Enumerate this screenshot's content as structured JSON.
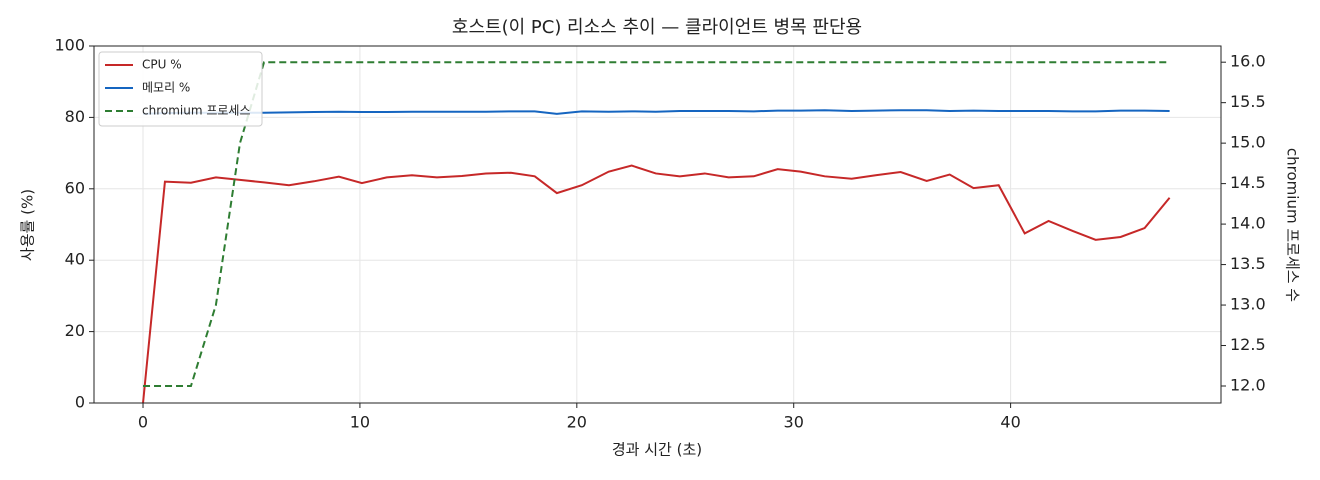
{
  "chart_data": {
    "type": "line",
    "title": "호스트(이 PC) 리소스 추이 — 클라이언트 병목 판단용",
    "x_label": "경과 시간 (초)",
    "y_label": "사용률 (%)",
    "y2_label": "chromium 프로세스 수",
    "x": [
      0,
      1.01,
      2.21,
      3.36,
      4.47,
      5.58,
      6.73,
      7.88,
      9.03,
      10.09,
      11.24,
      12.4,
      13.55,
      14.7,
      15.81,
      16.96,
      18.06,
      19.08,
      20.23,
      21.47,
      22.53,
      23.64,
      24.75,
      25.9,
      27.0,
      28.16,
      29.26,
      30.32,
      31.43,
      32.67,
      33.78,
      34.93,
      36.13,
      37.19,
      38.29,
      39.45,
      40.65,
      41.75,
      42.86,
      43.92,
      45.07,
      46.18,
      47.33
    ],
    "series": [
      {
        "name": "CPU %",
        "color": "#c62828",
        "linestyle": "solid",
        "axis": "y",
        "values": [
          0,
          62,
          61.7,
          63.2,
          62.5,
          61.8,
          61,
          62.1,
          63.4,
          61.6,
          63.2,
          63.8,
          63.2,
          63.6,
          64.3,
          64.5,
          63.5,
          58.8,
          61,
          64.8,
          66.5,
          64.3,
          63.5,
          64.3,
          63.2,
          63.5,
          65.5,
          64.8,
          63.5,
          62.8,
          63.8,
          64.7,
          62.2,
          64,
          60.2,
          61,
          47.5,
          51,
          48.2,
          45.7,
          46.5,
          49,
          57.5
        ]
      },
      {
        "name": "메모리 %",
        "color": "#1565c0",
        "linestyle": "solid",
        "axis": "y",
        "values": [
          81.0,
          81.2,
          81.3,
          81.3,
          81.3,
          81.3,
          81.4,
          81.5,
          81.6,
          81.5,
          81.5,
          81.6,
          81.6,
          81.6,
          81.6,
          81.7,
          81.7,
          81.0,
          81.7,
          81.6,
          81.7,
          81.6,
          81.8,
          81.8,
          81.8,
          81.7,
          81.9,
          81.9,
          82.0,
          81.8,
          81.9,
          82.0,
          82.0,
          81.8,
          81.9,
          81.8,
          81.8,
          81.8,
          81.7,
          81.7,
          81.9,
          81.9,
          81.8
        ]
      },
      {
        "name": "chromium 프로세스",
        "color": "#2e7d32",
        "linestyle": "dashed",
        "axis": "y2",
        "values": [
          12,
          12,
          12,
          13,
          15,
          16,
          16,
          16,
          16,
          16,
          16,
          16,
          16,
          16,
          16,
          16,
          16,
          16,
          16,
          16,
          16,
          16,
          16,
          16,
          16,
          16,
          16,
          16,
          16,
          16,
          16,
          16,
          16,
          16,
          16,
          16,
          16,
          16,
          16,
          16,
          16,
          16,
          16
        ]
      }
    ],
    "xlim": [
      -2.26,
      49.7
    ],
    "xticks": [
      0,
      10,
      20,
      30,
      40
    ],
    "ylim": [
      0,
      100
    ],
    "yticks": [
      0,
      20,
      40,
      60,
      80,
      100
    ],
    "y2lim": [
      11.79,
      16.2
    ],
    "y2ticks": [
      {
        "value": 12,
        "label": "12.0"
      },
      {
        "value": 12.5,
        "label": "12.5"
      },
      {
        "value": 13,
        "label": "13.0"
      },
      {
        "value": 13.5,
        "label": "13.5"
      },
      {
        "value": 14,
        "label": "14.0"
      },
      {
        "value": 14.5,
        "label": "14.5"
      },
      {
        "value": 15,
        "label": "15.0"
      },
      {
        "value": 15.5,
        "label": "15.5"
      },
      {
        "value": 16,
        "label": "16.0"
      }
    ],
    "grid": true,
    "legend": "upper-left"
  }
}
